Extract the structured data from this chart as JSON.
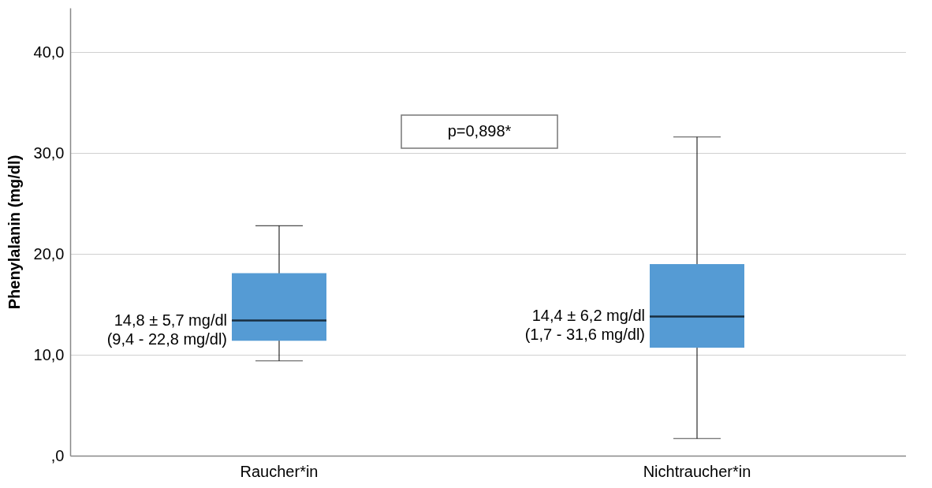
{
  "chart_data": {
    "type": "box",
    "ylabel": "Phenylalanin (mg/dl)",
    "categories": [
      "Raucher*in",
      "Nichtraucher*in"
    ],
    "color": "#559bd4",
    "boxes": [
      {
        "low": 9.4,
        "q1": 11.4,
        "median": 13.4,
        "q3": 18.1,
        "high": 22.8
      },
      {
        "low": 1.7,
        "q1": 10.7,
        "median": 13.8,
        "q3": 19.0,
        "high": 31.6
      }
    ],
    "ylim": [
      0,
      44.4
    ],
    "yticks": [
      {
        "value": 0,
        "label": ",0"
      },
      {
        "value": 10,
        "label": "10,0"
      },
      {
        "value": 20,
        "label": "20,0"
      },
      {
        "value": 30,
        "label": "30,0"
      },
      {
        "value": 40,
        "label": "40,0"
      }
    ],
    "grid": "y",
    "annotations": [
      "14,8 ± 5,7 mg/dl\n(9,4 - 22,8 mg/dl)",
      "14,4 ± 6,2 mg/dl\n(1,7 - 31,6 mg/dl)",
      "p=0,898*"
    ]
  }
}
